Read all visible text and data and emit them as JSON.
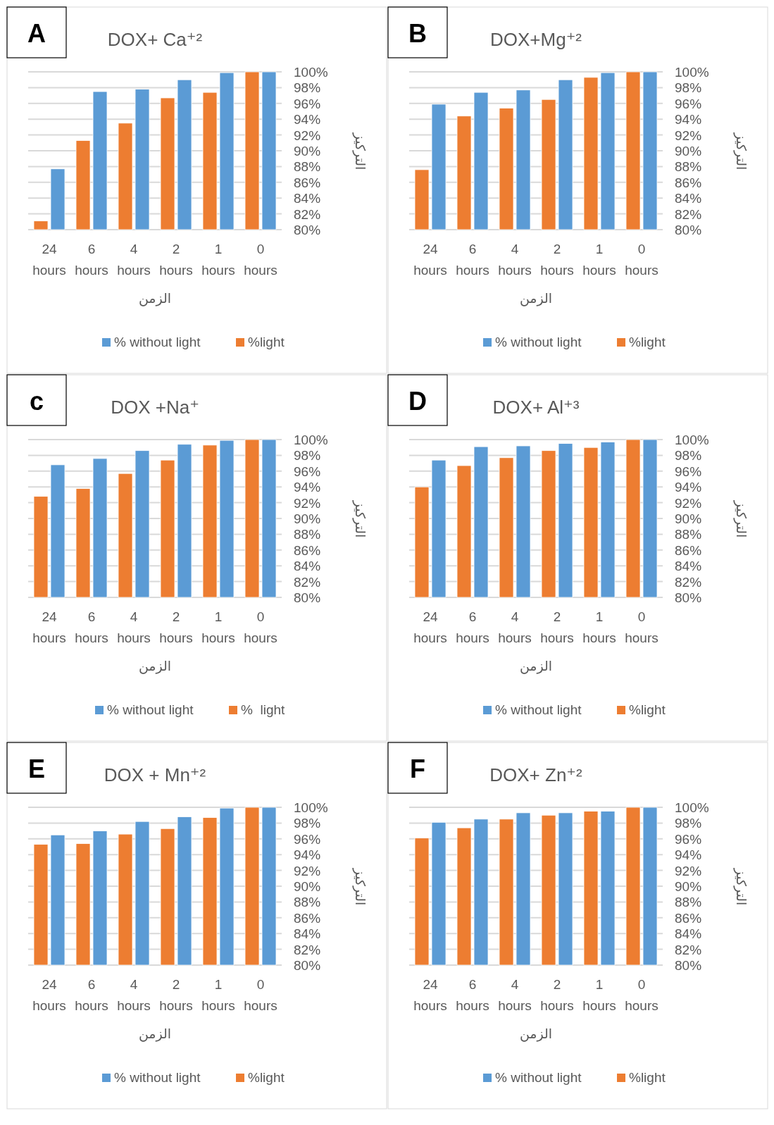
{
  "chart_data": [
    {
      "type": "bar",
      "title": "DOX+ Ca⁺²",
      "annotations": [
        "A"
      ],
      "xlabel": "الزمن",
      "ylabel": "التركيز",
      "categories": [
        "24 hours",
        "6 hours",
        "4 hours",
        "2 hours",
        "1 hours",
        "0 hours"
      ],
      "series": [
        {
          "name": "% without light",
          "color": "#5b9bd5",
          "values": [
            87.7,
            97.5,
            97.8,
            99.0,
            99.9,
            100
          ]
        },
        {
          "name": "%light",
          "color": "#ed7d31",
          "values": [
            81.1,
            91.3,
            93.5,
            96.7,
            97.4,
            100
          ]
        }
      ],
      "ylim": [
        80,
        100
      ],
      "yticks": [
        {
          "value": 80,
          "label": "80%"
        },
        {
          "value": 82,
          "label": "82%"
        },
        {
          "value": 84,
          "label": "84%"
        },
        {
          "value": 86,
          "label": "86%"
        },
        {
          "value": 88,
          "label": "88%"
        },
        {
          "value": 90,
          "label": "90%"
        },
        {
          "value": 92,
          "label": "92%"
        },
        {
          "value": 94,
          "label": "94%"
        },
        {
          "value": 96,
          "label": "96%"
        },
        {
          "value": 98,
          "label": "98%"
        },
        {
          "value": 100,
          "label": "100%"
        }
      ],
      "grid": "y",
      "legend": "bottom"
    },
    {
      "type": "bar",
      "title": "DOX+Mg⁺²",
      "annotations": [
        "B"
      ],
      "xlabel": "الزمن",
      "ylabel": "التركيز",
      "categories": [
        "24 hours",
        "6 hours",
        "4 hours",
        "2 hours",
        "1 hours",
        "0 hours"
      ],
      "series": [
        {
          "name": "% without light",
          "color": "#5b9bd5",
          "values": [
            95.9,
            97.4,
            97.7,
            99.0,
            99.9,
            100
          ]
        },
        {
          "name": "%light",
          "color": "#ed7d31",
          "values": [
            87.6,
            94.4,
            95.4,
            96.5,
            99.3,
            100
          ]
        }
      ],
      "ylim": [
        80,
        100
      ],
      "yticks": [
        {
          "value": 80,
          "label": "80%"
        },
        {
          "value": 82,
          "label": "82%"
        },
        {
          "value": 84,
          "label": "84%"
        },
        {
          "value": 86,
          "label": "86%"
        },
        {
          "value": 88,
          "label": "88%"
        },
        {
          "value": 90,
          "label": "90%"
        },
        {
          "value": 92,
          "label": "92%"
        },
        {
          "value": 94,
          "label": "94%"
        },
        {
          "value": 96,
          "label": "96%"
        },
        {
          "value": 98,
          "label": "98%"
        },
        {
          "value": 100,
          "label": "100%"
        }
      ],
      "grid": "y",
      "legend": "bottom"
    },
    {
      "type": "bar",
      "title": "DOX +Na⁺",
      "annotations": [
        "c"
      ],
      "xlabel": "الزمن",
      "ylabel": "التركيز",
      "categories": [
        "24 hours",
        "6 hours",
        "4 hours",
        "2 hours",
        "1 hours",
        "0 hours"
      ],
      "series": [
        {
          "name": "% without light",
          "color": "#5b9bd5",
          "values": [
            96.8,
            97.6,
            98.6,
            99.4,
            99.9,
            100
          ]
        },
        {
          "name": "%  light",
          "color": "#ed7d31",
          "values": [
            92.8,
            93.8,
            95.7,
            97.4,
            99.3,
            100
          ]
        }
      ],
      "ylim": [
        80,
        100
      ],
      "yticks": [
        {
          "value": 80,
          "label": "80%"
        },
        {
          "value": 82,
          "label": "82%"
        },
        {
          "value": 84,
          "label": "84%"
        },
        {
          "value": 86,
          "label": "86%"
        },
        {
          "value": 88,
          "label": "88%"
        },
        {
          "value": 90,
          "label": "90%"
        },
        {
          "value": 92,
          "label": "92%"
        },
        {
          "value": 94,
          "label": "94%"
        },
        {
          "value": 96,
          "label": "96%"
        },
        {
          "value": 98,
          "label": "98%"
        },
        {
          "value": 100,
          "label": "100%"
        }
      ],
      "grid": "y",
      "legend": "bottom"
    },
    {
      "type": "bar",
      "title": "DOX+ Al⁺³",
      "annotations": [
        "D"
      ],
      "xlabel": "الزمن",
      "ylabel": "التركيز",
      "categories": [
        "24 hours",
        "6 hours",
        "4 hours",
        "2 hours",
        "1 hours",
        "0 hours"
      ],
      "series": [
        {
          "name": "% without light",
          "color": "#5b9bd5",
          "values": [
            97.4,
            99.1,
            99.2,
            99.5,
            99.7,
            100
          ]
        },
        {
          "name": "%light",
          "color": "#ed7d31",
          "values": [
            94.0,
            96.7,
            97.7,
            98.6,
            99.0,
            100
          ]
        }
      ],
      "ylim": [
        80,
        100
      ],
      "yticks": [
        {
          "value": 80,
          "label": "80%"
        },
        {
          "value": 82,
          "label": "82%"
        },
        {
          "value": 84,
          "label": "84%"
        },
        {
          "value": 86,
          "label": "86%"
        },
        {
          "value": 88,
          "label": "88%"
        },
        {
          "value": 90,
          "label": "90%"
        },
        {
          "value": 92,
          "label": "92%"
        },
        {
          "value": 94,
          "label": "94%"
        },
        {
          "value": 96,
          "label": "96%"
        },
        {
          "value": 98,
          "label": "98%"
        },
        {
          "value": 100,
          "label": "100%"
        }
      ],
      "grid": "y",
      "legend": "bottom"
    },
    {
      "type": "bar",
      "title": "DOX + Mn⁺²",
      "annotations": [
        "E"
      ],
      "xlabel": "الزمن",
      "ylabel": "التركيز",
      "categories": [
        "24 hours",
        "6 hours",
        "4 hours",
        "2 hours",
        "1 hours",
        "0 hours"
      ],
      "series": [
        {
          "name": "% without light",
          "color": "#5b9bd5",
          "values": [
            96.5,
            97.0,
            98.2,
            98.8,
            99.9,
            100
          ]
        },
        {
          "name": "%light",
          "color": "#ed7d31",
          "values": [
            95.3,
            95.4,
            96.6,
            97.3,
            98.7,
            100
          ]
        }
      ],
      "ylim": [
        80,
        100
      ],
      "yticks": [
        {
          "value": 80,
          "label": "80%"
        },
        {
          "value": 82,
          "label": "82%"
        },
        {
          "value": 84,
          "label": "84%"
        },
        {
          "value": 86,
          "label": "86%"
        },
        {
          "value": 88,
          "label": "88%"
        },
        {
          "value": 90,
          "label": "90%"
        },
        {
          "value": 92,
          "label": "92%"
        },
        {
          "value": 94,
          "label": "94%"
        },
        {
          "value": 96,
          "label": "96%"
        },
        {
          "value": 98,
          "label": "98%"
        },
        {
          "value": 100,
          "label": "100%"
        }
      ],
      "grid": "y",
      "legend": "bottom"
    },
    {
      "type": "bar",
      "title": "DOX+ Zn⁺²",
      "annotations": [
        "F"
      ],
      "xlabel": "الزمن",
      "ylabel": "التركيز",
      "categories": [
        "24 hours",
        "6 hours",
        "4 hours",
        "2 hours",
        "1 hours",
        "0 hours"
      ],
      "series": [
        {
          "name": "% without light",
          "color": "#5b9bd5",
          "values": [
            98.1,
            98.5,
            99.3,
            99.3,
            99.5,
            100
          ]
        },
        {
          "name": "%light",
          "color": "#ed7d31",
          "values": [
            96.1,
            97.4,
            98.5,
            99.0,
            99.5,
            100
          ]
        }
      ],
      "ylim": [
        80,
        100
      ],
      "yticks": [
        {
          "value": 80,
          "label": "80%"
        },
        {
          "value": 82,
          "label": "82%"
        },
        {
          "value": 84,
          "label": "84%"
        },
        {
          "value": 86,
          "label": "86%"
        },
        {
          "value": 88,
          "label": "88%"
        },
        {
          "value": 90,
          "label": "90%"
        },
        {
          "value": 92,
          "label": "92%"
        },
        {
          "value": 94,
          "label": "94%"
        },
        {
          "value": 96,
          "label": "96%"
        },
        {
          "value": 98,
          "label": "98%"
        },
        {
          "value": 100,
          "label": "100%"
        }
      ],
      "grid": "y",
      "legend": "bottom"
    }
  ]
}
